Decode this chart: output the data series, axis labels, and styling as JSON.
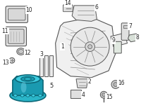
{
  "bg_color": "#ffffff",
  "lc": "#555555",
  "lc_thin": "#888888",
  "part5_color1": "#2ab5c8",
  "part5_color2": "#1a9ab0",
  "part5_color3": "#3dcce0",
  "part5_dark": "#0d6878",
  "label_bg": "#ffffff",
  "label_fc": "#222222",
  "label_fs": 5.5,
  "fig_w": 2.0,
  "fig_h": 1.47,
  "dpi": 100
}
